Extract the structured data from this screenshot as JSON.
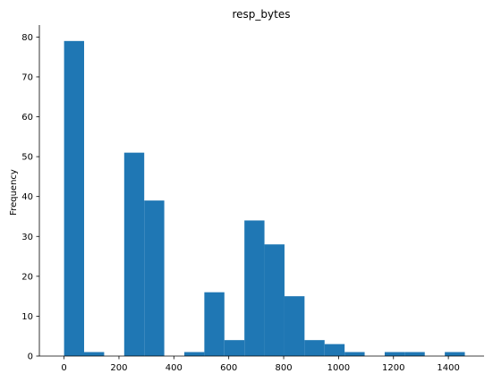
{
  "chart_data": {
    "type": "bar",
    "title": "resp_bytes",
    "xlabel": "",
    "ylabel": "Frequency",
    "color": "#1f77b4",
    "xlim": [
      -90,
      1530
    ],
    "ylim": [
      0,
      83
    ],
    "x_ticks": [
      0,
      200,
      400,
      600,
      800,
      1000,
      1200,
      1400
    ],
    "y_ticks": [
      0,
      10,
      20,
      30,
      40,
      50,
      60,
      70,
      80
    ],
    "bins": [
      {
        "x0": 0,
        "x1": 73,
        "value": 79
      },
      {
        "x0": 73,
        "x1": 146,
        "value": 1
      },
      {
        "x0": 146,
        "x1": 219,
        "value": 0
      },
      {
        "x0": 219,
        "x1": 292,
        "value": 51
      },
      {
        "x0": 292,
        "x1": 365,
        "value": 39
      },
      {
        "x0": 365,
        "x1": 438,
        "value": 0
      },
      {
        "x0": 438,
        "x1": 511,
        "value": 1
      },
      {
        "x0": 511,
        "x1": 584,
        "value": 16
      },
      {
        "x0": 584,
        "x1": 657,
        "value": 4
      },
      {
        "x0": 657,
        "x1": 730,
        "value": 34
      },
      {
        "x0": 730,
        "x1": 803,
        "value": 28
      },
      {
        "x0": 803,
        "x1": 876,
        "value": 15
      },
      {
        "x0": 876,
        "x1": 949,
        "value": 4
      },
      {
        "x0": 949,
        "x1": 1022,
        "value": 3
      },
      {
        "x0": 1022,
        "x1": 1095,
        "value": 1
      },
      {
        "x0": 1095,
        "x1": 1168,
        "value": 0
      },
      {
        "x0": 1168,
        "x1": 1241,
        "value": 1
      },
      {
        "x0": 1241,
        "x1": 1314,
        "value": 1
      },
      {
        "x0": 1314,
        "x1": 1387,
        "value": 0
      },
      {
        "x0": 1387,
        "x1": 1460,
        "value": 1
      }
    ],
    "grid": false,
    "spines": [
      "left",
      "bottom"
    ]
  }
}
